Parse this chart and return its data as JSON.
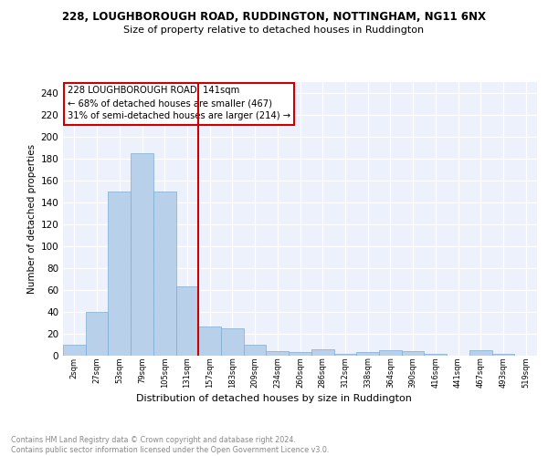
{
  "title": "228, LOUGHBOROUGH ROAD, RUDDINGTON, NOTTINGHAM, NG11 6NX",
  "subtitle": "Size of property relative to detached houses in Ruddington",
  "xlabel": "Distribution of detached houses by size in Ruddington",
  "ylabel": "Number of detached properties",
  "bar_color": "#b8d0ea",
  "bar_edge_color": "#7aafd4",
  "categories": [
    "2sqm",
    "27sqm",
    "53sqm",
    "79sqm",
    "105sqm",
    "131sqm",
    "157sqm",
    "183sqm",
    "209sqm",
    "234sqm",
    "260sqm",
    "286sqm",
    "312sqm",
    "338sqm",
    "364sqm",
    "390sqm",
    "416sqm",
    "441sqm",
    "467sqm",
    "493sqm",
    "519sqm"
  ],
  "values": [
    10,
    40,
    150,
    185,
    150,
    63,
    27,
    25,
    10,
    4,
    3,
    6,
    2,
    3,
    5,
    4,
    2,
    0,
    5,
    2,
    0
  ],
  "ylim": [
    0,
    250
  ],
  "yticks": [
    0,
    20,
    40,
    60,
    80,
    100,
    120,
    140,
    160,
    180,
    200,
    220,
    240
  ],
  "vline_color": "#cc0000",
  "vline_index": 5,
  "annotation_line1": "228 LOUGHBOROUGH ROAD: 141sqm",
  "annotation_line2": "← 68% of detached houses are smaller (467)",
  "annotation_line3": "31% of semi-detached houses are larger (214) →",
  "footer_line1": "Contains HM Land Registry data © Crown copyright and database right 2024.",
  "footer_line2": "Contains public sector information licensed under the Open Government Licence v3.0.",
  "bg_color": "#edf1fb"
}
